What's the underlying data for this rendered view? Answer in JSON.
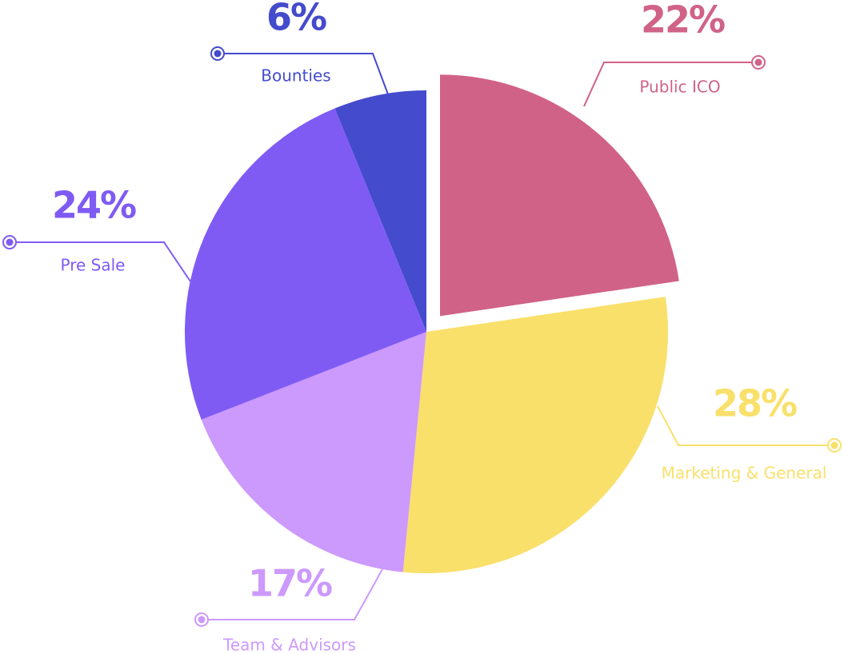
{
  "chart_data": {
    "type": "pie",
    "categories": [
      "Public ICO",
      "Marketing & General",
      "Team & Advisors",
      "Pre Sale",
      "Bounties"
    ],
    "values": [
      22,
      28,
      17,
      24,
      6
    ],
    "value_labels": [
      "22%",
      "28%",
      "17%",
      "24%",
      "6%"
    ],
    "colors": [
      "#d16287",
      "#f9e06b",
      "#cc99fd",
      "#7f5bf4",
      "#444bcc"
    ],
    "exploded": [
      true,
      false,
      false,
      false,
      false
    ]
  }
}
